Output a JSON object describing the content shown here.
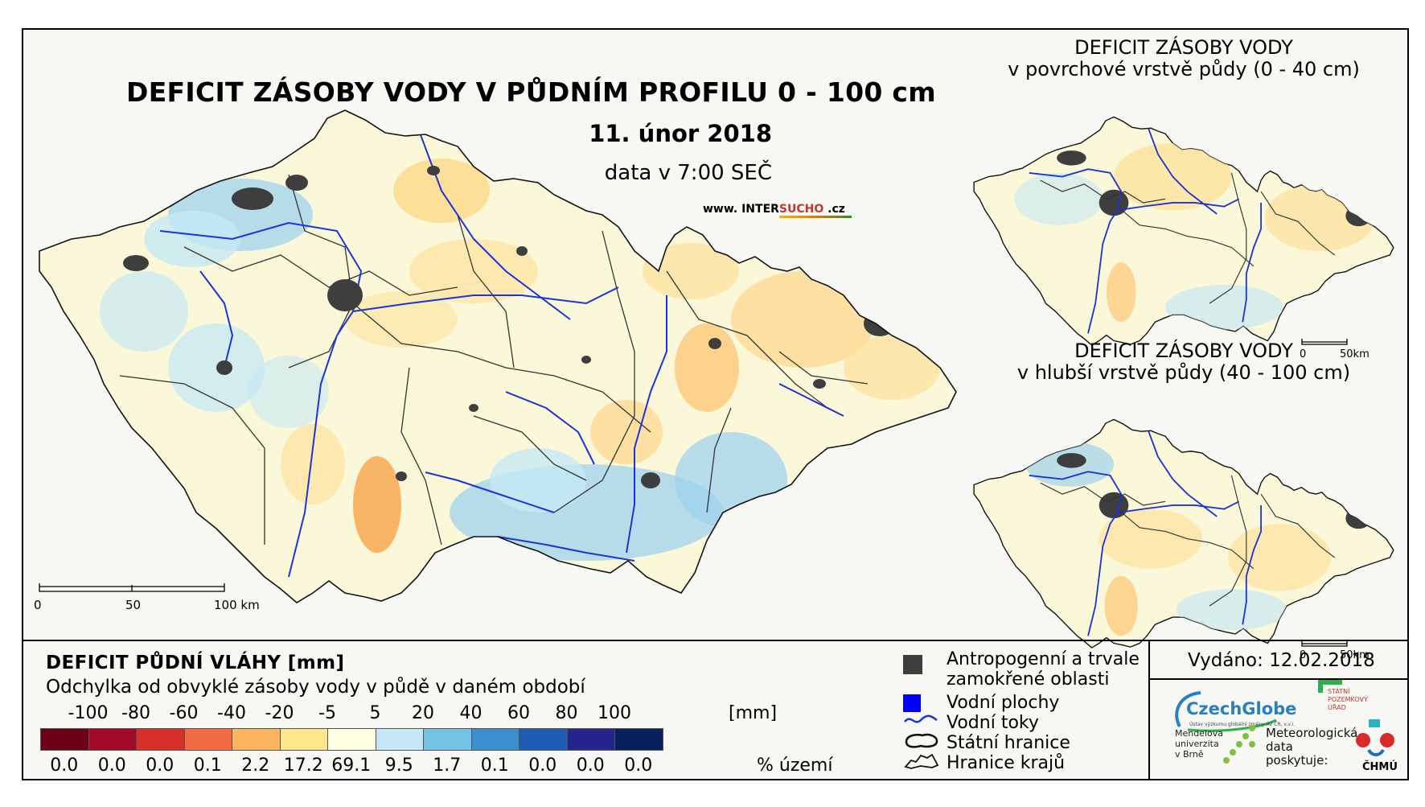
{
  "main": {
    "title": "DEFICIT ZÁSOBY VODY V PŮDNÍM PROFILU 0 - 100 cm",
    "date": "11. únor 2018",
    "time": "data v 7:00 SEČ",
    "website_pre": "www. INTER",
    "website_brand": "SUCHO",
    "website_post": " .cz",
    "scale": {
      "labels": [
        "0",
        "50",
        "100 km"
      ]
    }
  },
  "insets": [
    {
      "title_line1": "DEFICIT ZÁSOBY VODY",
      "title_line2": "v povrchové vrstvě půdy (0 - 40 cm)",
      "scale": [
        "0",
        "50km"
      ]
    },
    {
      "title_line1": "DEFICIT ZÁSOBY VODY",
      "title_line2": "v hlubší vrstvě půdy (40 - 100 cm)",
      "scale": [
        "0",
        "50km"
      ]
    }
  ],
  "legend": {
    "title": "DEFICIT PŮDNÍ VLÁHY [mm]",
    "subtitle": "Odchylka od obvyklé zásoby vody v půdě v daném období",
    "breaks": [
      "-100",
      "-80",
      "-60",
      "-40",
      "-20",
      "-5",
      "5",
      "20",
      "40",
      "60",
      "80",
      "100"
    ],
    "unit": "[mm]",
    "colors": [
      "#6b0017",
      "#a30a2a",
      "#d7302b",
      "#f26b43",
      "#fdb45e",
      "#fde68c",
      "#ffffe3",
      "#c6e8f4",
      "#72c3e6",
      "#3b8fcf",
      "#1f5cb3",
      "#25238c",
      "#08205c"
    ],
    "percent_values": [
      "0.0",
      "0.0",
      "0.0",
      "0.1",
      "2.2",
      "17.2",
      "69.1",
      "9.5",
      "1.7",
      "0.1",
      "0.0",
      "0.0",
      "0.0"
    ],
    "percent_unit": "% území"
  },
  "symbols": {
    "anthropogenic_line1": "Antropogenní a trvale",
    "anthropogenic_line2": "zamokřené oblasti",
    "water_bodies": "Vodní plochy",
    "rivers": "Vodní toky",
    "state_border": "Státní hranice",
    "region_border": "Hranice krajů"
  },
  "issued": "Vydáno: 12.02.2018",
  "logos": {
    "czechglobe": "CzechGlobe",
    "czechglobe_sub": "Ústav výzkumu globální změny AV ČR, v.v.i.",
    "spu_line1": "STÁTNÍ",
    "spu_line2": "POZEMKOVÝ",
    "spu_line3": "ÚŘAD",
    "mendel_line1": "Mendelova",
    "mendel_line2": "univerzita",
    "mendel_line3": "v Brně",
    "meteo_line1": "Meteorologická",
    "meteo_line2": "data",
    "meteo_line3": "poskytuje:",
    "chmu": "ČHMÚ"
  }
}
